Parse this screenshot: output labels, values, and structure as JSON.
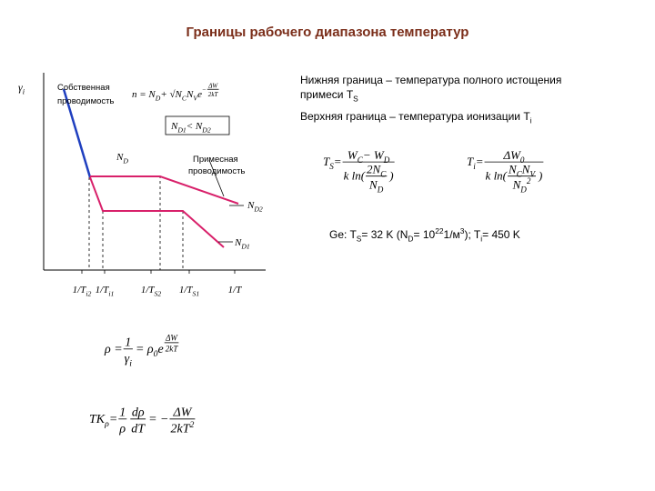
{
  "title": [
    {
      "t": "Границы рабочего диапазона температур"
    }
  ],
  "notes": {
    "lower_1": [
      {
        "t": "Нижняя граница – температура полного истощения"
      }
    ],
    "lower_2": [
      {
        "t": "примеси T"
      },
      {
        "t": "S",
        "s": "sub"
      }
    ],
    "upper": [
      {
        "t": "Верхняя граница – температура ионизации T"
      },
      {
        "t": "i",
        "s": "sub"
      }
    ],
    "example": [
      {
        "t": "Ge: T"
      },
      {
        "t": "S",
        "s": "sub"
      },
      {
        "t": " = 32 K (N"
      },
      {
        "t": "D",
        "s": "sub"
      },
      {
        "t": " = 10"
      },
      {
        "t": "22",
        "s": "sup"
      },
      {
        "t": " 1/м"
      },
      {
        "t": "3",
        "s": "sup"
      },
      {
        "t": "); T"
      },
      {
        "t": "i",
        "s": "sub"
      },
      {
        "t": " = 450 K"
      }
    ]
  },
  "graph": {
    "y_label": [
      {
        "t": "γ"
      },
      {
        "t": "i",
        "s": "sub"
      }
    ],
    "intrinsic_1": [
      {
        "t": "Собственная"
      }
    ],
    "intrinsic_2": [
      {
        "t": "проводимость"
      }
    ],
    "impurity_1": [
      {
        "t": "Примесная"
      }
    ],
    "impurity_2": [
      {
        "t": "проводимость"
      }
    ],
    "nd": [
      {
        "t": "N"
      },
      {
        "t": "D",
        "s": "sub"
      }
    ],
    "nd2": [
      {
        "t": "N"
      },
      {
        "t": "D2",
        "s": "sub"
      }
    ],
    "nd1": [
      {
        "t": "N"
      },
      {
        "t": "D1",
        "s": "sub"
      }
    ],
    "condition": [
      {
        "t": "N"
      },
      {
        "t": "D1",
        "s": "sub"
      },
      {
        "t": " < N"
      },
      {
        "t": "D2",
        "s": "sub"
      }
    ],
    "ticks": [
      [
        {
          "t": "1/T"
        },
        {
          "t": "i2",
          "s": "sub"
        }
      ],
      [
        {
          "t": "1/T"
        },
        {
          "t": "i1",
          "s": "sub"
        }
      ],
      [
        {
          "t": "1/T"
        },
        {
          "t": "S2",
          "s": "sub"
        }
      ],
      [
        {
          "t": "1/T"
        },
        {
          "t": "S1",
          "s": "sub"
        }
      ],
      [
        {
          "t": "1/T"
        }
      ]
    ]
  },
  "formulas": {
    "n": [
      {
        "text": [
          {
            "t": "n = N"
          },
          {
            "t": "D",
            "s": "sub"
          },
          {
            "t": " + √N"
          },
          {
            "t": "C",
            "s": "sub"
          },
          {
            "t": "N"
          },
          {
            "t": "V",
            "s": "sub"
          },
          {
            "t": " e"
          }
        ]
      },
      {
        "exp": [
          {
            "text": [
              {
                "t": "−"
              }
            ]
          },
          {
            "num": [
              {
                "text": [
                  {
                    "t": "ΔW"
                  }
                ]
              }
            ],
            "den": [
              {
                "text": [
                  {
                    "t": "2kT"
                  }
                ]
              }
            ]
          }
        ]
      }
    ],
    "ts": [
      {
        "text": [
          {
            "t": "T"
          },
          {
            "t": "S",
            "s": "sub"
          },
          {
            "t": " = "
          }
        ]
      },
      {
        "num": [
          {
            "text": [
              {
                "t": "W"
              },
              {
                "t": "C",
                "s": "sub"
              },
              {
                "t": " − W"
              },
              {
                "t": "D",
                "s": "sub"
              }
            ]
          }
        ],
        "den": [
          {
            "text": [
              {
                "t": "k ln("
              }
            ]
          },
          {
            "num": [
              {
                "text": [
                  {
                    "t": "2N"
                  },
                  {
                    "t": "C",
                    "s": "sub"
                  }
                ]
              }
            ],
            "den": [
              {
                "text": [
                  {
                    "t": "N"
                  },
                  {
                    "t": "D",
                    "s": "sub"
                  }
                ]
              }
            ]
          },
          {
            "text": [
              {
                "t": ")"
              }
            ]
          }
        ]
      }
    ],
    "ti": [
      {
        "text": [
          {
            "t": "T"
          },
          {
            "t": "i",
            "s": "sub"
          },
          {
            "t": " = "
          }
        ]
      },
      {
        "num": [
          {
            "text": [
              {
                "t": "ΔW"
              },
              {
                "t": "0",
                "s": "sub"
              }
            ]
          }
        ],
        "den": [
          {
            "text": [
              {
                "t": "k ln("
              }
            ]
          },
          {
            "num": [
              {
                "text": [
                  {
                    "t": "N"
                  },
                  {
                    "t": "C",
                    "s": "sub"
                  },
                  {
                    "t": "N"
                  },
                  {
                    "t": "V",
                    "s": "sub"
                  }
                ]
              }
            ],
            "den": [
              {
                "text": [
                  {
                    "t": "N"
                  },
                  {
                    "t": "D",
                    "s": "sub"
                  },
                  {
                    "t": "2",
                    "s": "sup"
                  }
                ]
              }
            ]
          },
          {
            "text": [
              {
                "t": ")"
              }
            ]
          }
        ]
      }
    ],
    "rho": [
      {
        "text": [
          {
            "t": "ρ = "
          }
        ]
      },
      {
        "num": [
          {
            "text": [
              {
                "t": "1"
              }
            ]
          }
        ],
        "den": [
          {
            "text": [
              {
                "t": "γ"
              },
              {
                "t": "i",
                "s": "sub"
              }
            ]
          }
        ]
      },
      {
        "text": [
          {
            "t": " = ρ"
          },
          {
            "t": "0",
            "s": "sub"
          },
          {
            "t": "e"
          }
        ]
      },
      {
        "exp": [
          {
            "num": [
              {
                "text": [
                  {
                    "t": "ΔW"
                  }
                ]
              }
            ],
            "den": [
              {
                "text": [
                  {
                    "t": "2kT"
                  }
                ]
              }
            ]
          }
        ]
      }
    ],
    "tk": [
      {
        "text": [
          {
            "t": "TK"
          },
          {
            "t": "ρ",
            "s": "sub"
          },
          {
            "t": " = "
          }
        ]
      },
      {
        "num": [
          {
            "text": [
              {
                "t": "1"
              }
            ]
          }
        ],
        "den": [
          {
            "text": [
              {
                "t": "ρ"
              }
            ]
          }
        ]
      },
      {
        "num": [
          {
            "text": [
              {
                "t": "dρ"
              }
            ]
          }
        ],
        "den": [
          {
            "text": [
              {
                "t": "dT"
              }
            ]
          }
        ]
      },
      {
        "text": [
          {
            "t": " = −"
          }
        ]
      },
      {
        "num": [
          {
            "text": [
              {
                "t": "ΔW"
              }
            ]
          }
        ],
        "den": [
          {
            "text": [
              {
                "t": "2kT"
              },
              {
                "t": "2",
                "s": "sup"
              }
            ]
          }
        ]
      }
    ]
  }
}
